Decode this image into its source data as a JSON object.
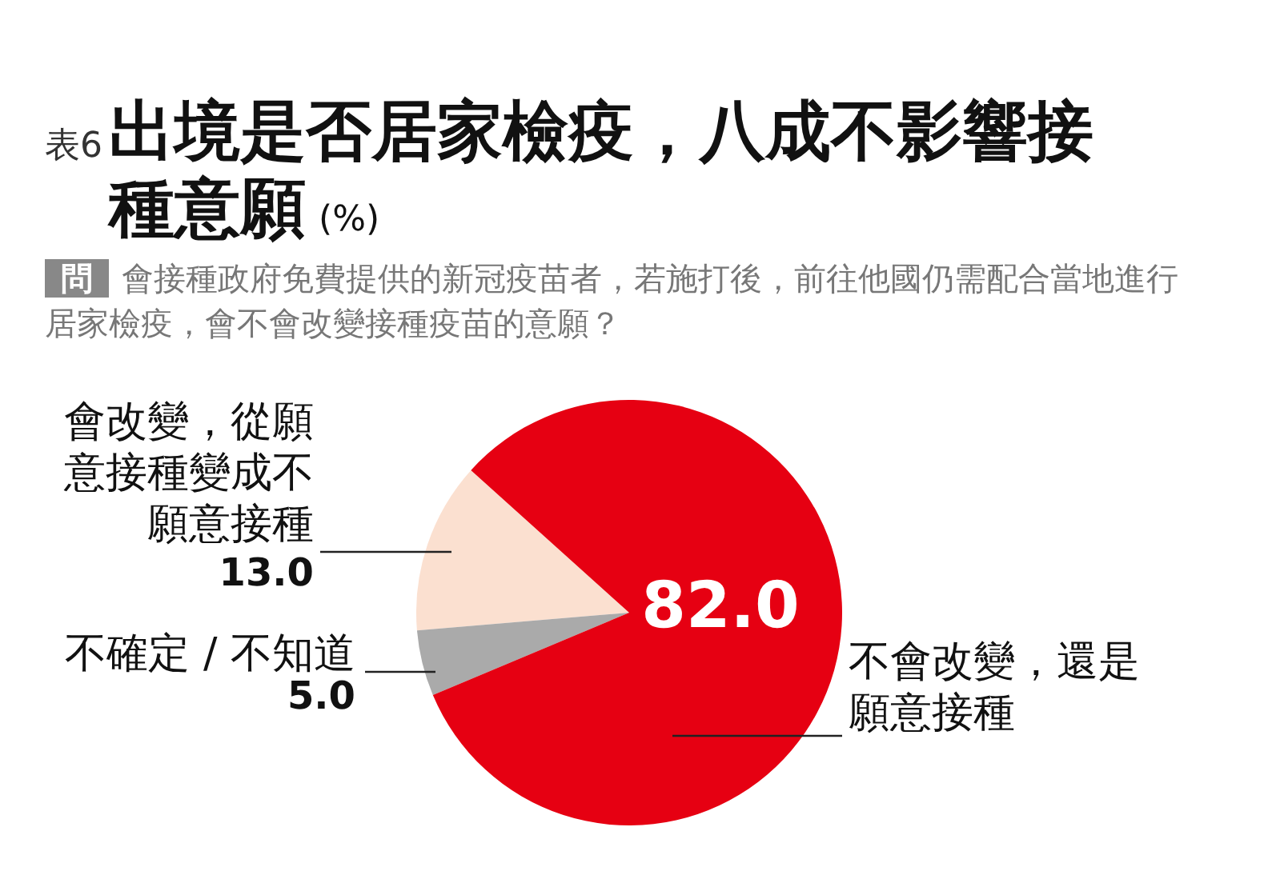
{
  "chart_data": {
    "type": "pie",
    "title": "出境是否居家檢疫，八成不影響接種意願",
    "annotations": [
      "表6",
      "(%)",
      "問",
      "會接種政府免費提供的新冠疫苗者，若施打後，前往他國仍需配合當地進行居家檢疫，會不會改變接種疫苗的意願？"
    ],
    "categories": [
      "會改變，從願意接種變成不願意接種",
      "不確定 / 不知道",
      "不會改變，還是願意接種"
    ],
    "values": [
      13,
      5,
      82
    ],
    "colors": [
      "#fbe0d0",
      "#aaaaaa",
      "#e60012"
    ],
    "value_labels": [
      "13.0",
      "5.0",
      "82.0"
    ]
  }
}
